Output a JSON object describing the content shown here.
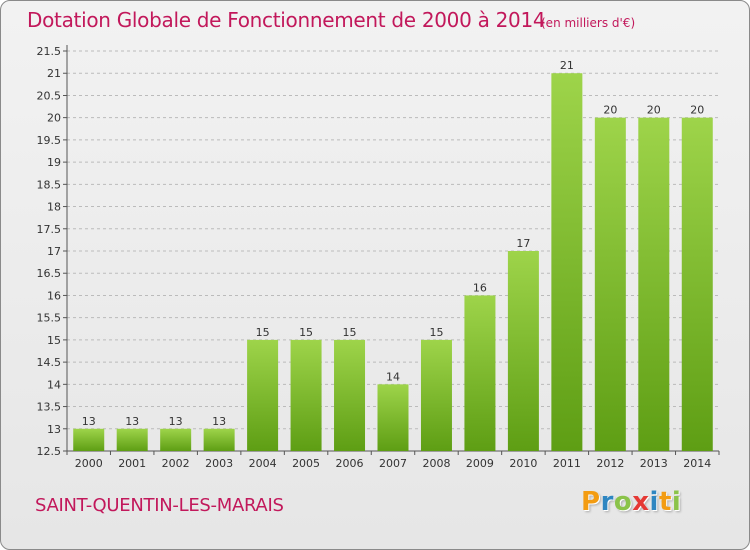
{
  "title": "Dotation Globale de Fonctionnement de 2000 à 2014",
  "subtitle": "(en milliers d'€)",
  "city": "SAINT-QUENTIN-LES-MARAIS",
  "logo": {
    "letters": [
      "P",
      "r",
      "o",
      "x",
      "i",
      "t",
      "i"
    ],
    "colors": [
      "#f39c12",
      "#2e86c1",
      "#8bc34a",
      "#e53935",
      "#2e86c1",
      "#f39c12",
      "#8bc34a"
    ]
  },
  "colors": {
    "title": "#c2185b",
    "bar_light": "#9ed44a",
    "bar_dark": "#5e9e14",
    "grid": "#bbbbbb"
  },
  "chart_data": {
    "type": "bar",
    "title": "Dotation Globale de Fonctionnement de 2000 à 2014",
    "subtitle": "(en milliers d'€)",
    "categories": [
      "2000",
      "2001",
      "2002",
      "2003",
      "2004",
      "2005",
      "2006",
      "2007",
      "2008",
      "2009",
      "2010",
      "2011",
      "2012",
      "2013",
      "2014"
    ],
    "values": [
      13,
      13,
      13,
      13,
      15,
      15,
      15,
      14,
      15,
      16,
      17,
      21,
      20,
      20,
      20
    ],
    "ylim": [
      12.5,
      21.5
    ],
    "yticks": [
      12.5,
      13,
      13.5,
      14,
      14.5,
      15,
      15.5,
      16,
      16.5,
      17,
      17.5,
      18,
      18.5,
      19,
      19.5,
      20,
      20.5,
      21,
      21.5
    ],
    "ytick_labels": [
      "12.5",
      "13",
      "13.5",
      "14",
      "14.5",
      "15",
      "15.5",
      "16",
      "16.5",
      "17",
      "17.5",
      "18",
      "18.5",
      "19",
      "19.5",
      "20",
      "20.5",
      "21",
      "21.5"
    ],
    "grid": true,
    "xlabel": "",
    "ylabel": ""
  }
}
